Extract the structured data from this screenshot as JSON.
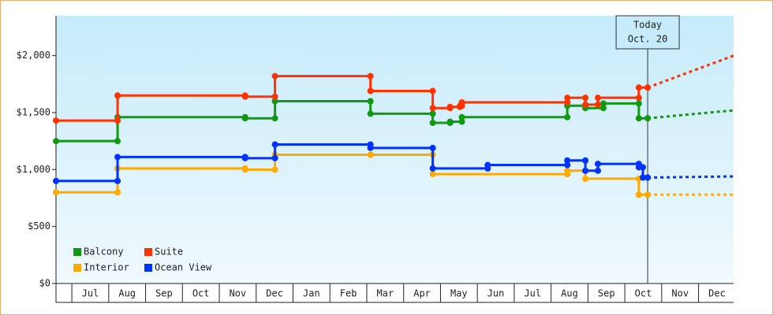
{
  "chart_data": {
    "type": "step",
    "ylim": [
      0,
      2350
    ],
    "yticks": [
      {
        "value": 0,
        "label": "$0"
      },
      {
        "value": 500,
        "label": "$500"
      },
      {
        "value": 1000,
        "label": "$1,000"
      },
      {
        "value": 1500,
        "label": "$1,500"
      },
      {
        "value": 2000,
        "label": "$2,000"
      }
    ],
    "xlim": [
      -0.43,
      17.95
    ],
    "xticks": [
      {
        "value": 0.5,
        "label": "Jul"
      },
      {
        "value": 1.5,
        "label": "Aug"
      },
      {
        "value": 2.5,
        "label": "Sep"
      },
      {
        "value": 3.5,
        "label": "Oct"
      },
      {
        "value": 4.5,
        "label": "Nov"
      },
      {
        "value": 5.5,
        "label": "Dec"
      },
      {
        "value": 6.5,
        "label": "Jan"
      },
      {
        "value": 7.5,
        "label": "Feb"
      },
      {
        "value": 8.5,
        "label": "Mar"
      },
      {
        "value": 9.5,
        "label": "Apr"
      },
      {
        "value": 10.5,
        "label": "May"
      },
      {
        "value": 11.5,
        "label": "Jun"
      },
      {
        "value": 12.5,
        "label": "Jul"
      },
      {
        "value": 13.5,
        "label": "Aug"
      },
      {
        "value": 14.5,
        "label": "Sep"
      },
      {
        "value": 15.5,
        "label": "Oct"
      },
      {
        "value": 16.5,
        "label": "Nov"
      },
      {
        "value": 17.5,
        "label": "Dec"
      }
    ],
    "today": {
      "x": 15.62,
      "label": [
        "Today",
        "Oct. 20"
      ]
    },
    "series": [
      {
        "name": "Balcony",
        "color": "#119911",
        "x": [
          -0.43,
          1.24,
          4.7,
          5.51,
          8.1,
          9.79,
          10.26,
          10.58,
          13.44,
          13.93,
          14.42,
          15.38,
          15.62
        ],
        "values": [
          1250,
          1460,
          1450,
          1600,
          1490,
          1410,
          1420,
          1460,
          1560,
          1540,
          1580,
          1450,
          1450
        ],
        "projection": {
          "x": [
            15.62,
            17.95
          ],
          "values": [
            1450,
            1520
          ]
        }
      },
      {
        "name": "Suite",
        "color": "#ff3300",
        "x": [
          -0.43,
          1.24,
          4.7,
          5.51,
          8.1,
          9.79,
          10.26,
          10.53,
          10.58,
          13.44,
          13.93,
          14.27,
          15.38,
          15.62
        ],
        "values": [
          1430,
          1650,
          1640,
          1820,
          1690,
          1540,
          1550,
          1560,
          1590,
          1630,
          1570,
          1630,
          1720,
          1720
        ],
        "projection": {
          "x": [
            15.62,
            17.95
          ],
          "values": [
            1720,
            2000
          ]
        }
      },
      {
        "name": "Interior",
        "color": "#ffaa00",
        "x": [
          -0.43,
          1.24,
          4.7,
          5.51,
          8.1,
          9.79,
          13.44,
          13.93,
          15.38,
          15.62
        ],
        "values": [
          800,
          1010,
          1000,
          1130,
          1130,
          960,
          990,
          920,
          780,
          780
        ],
        "projection": {
          "x": [
            15.62,
            17.95
          ],
          "values": [
            780,
            780
          ]
        }
      },
      {
        "name": "Ocean View",
        "color": "#0033ff",
        "x": [
          -0.43,
          1.24,
          4.7,
          5.51,
          8.1,
          9.79,
          11.28,
          13.44,
          13.93,
          14.27,
          15.38,
          15.49,
          15.62
        ],
        "values": [
          900,
          1110,
          1100,
          1220,
          1190,
          1010,
          1040,
          1080,
          990,
          1050,
          1020,
          930,
          930
        ],
        "projection": {
          "x": [
            15.62,
            17.95
          ],
          "values": [
            930,
            940
          ]
        }
      }
    ]
  }
}
